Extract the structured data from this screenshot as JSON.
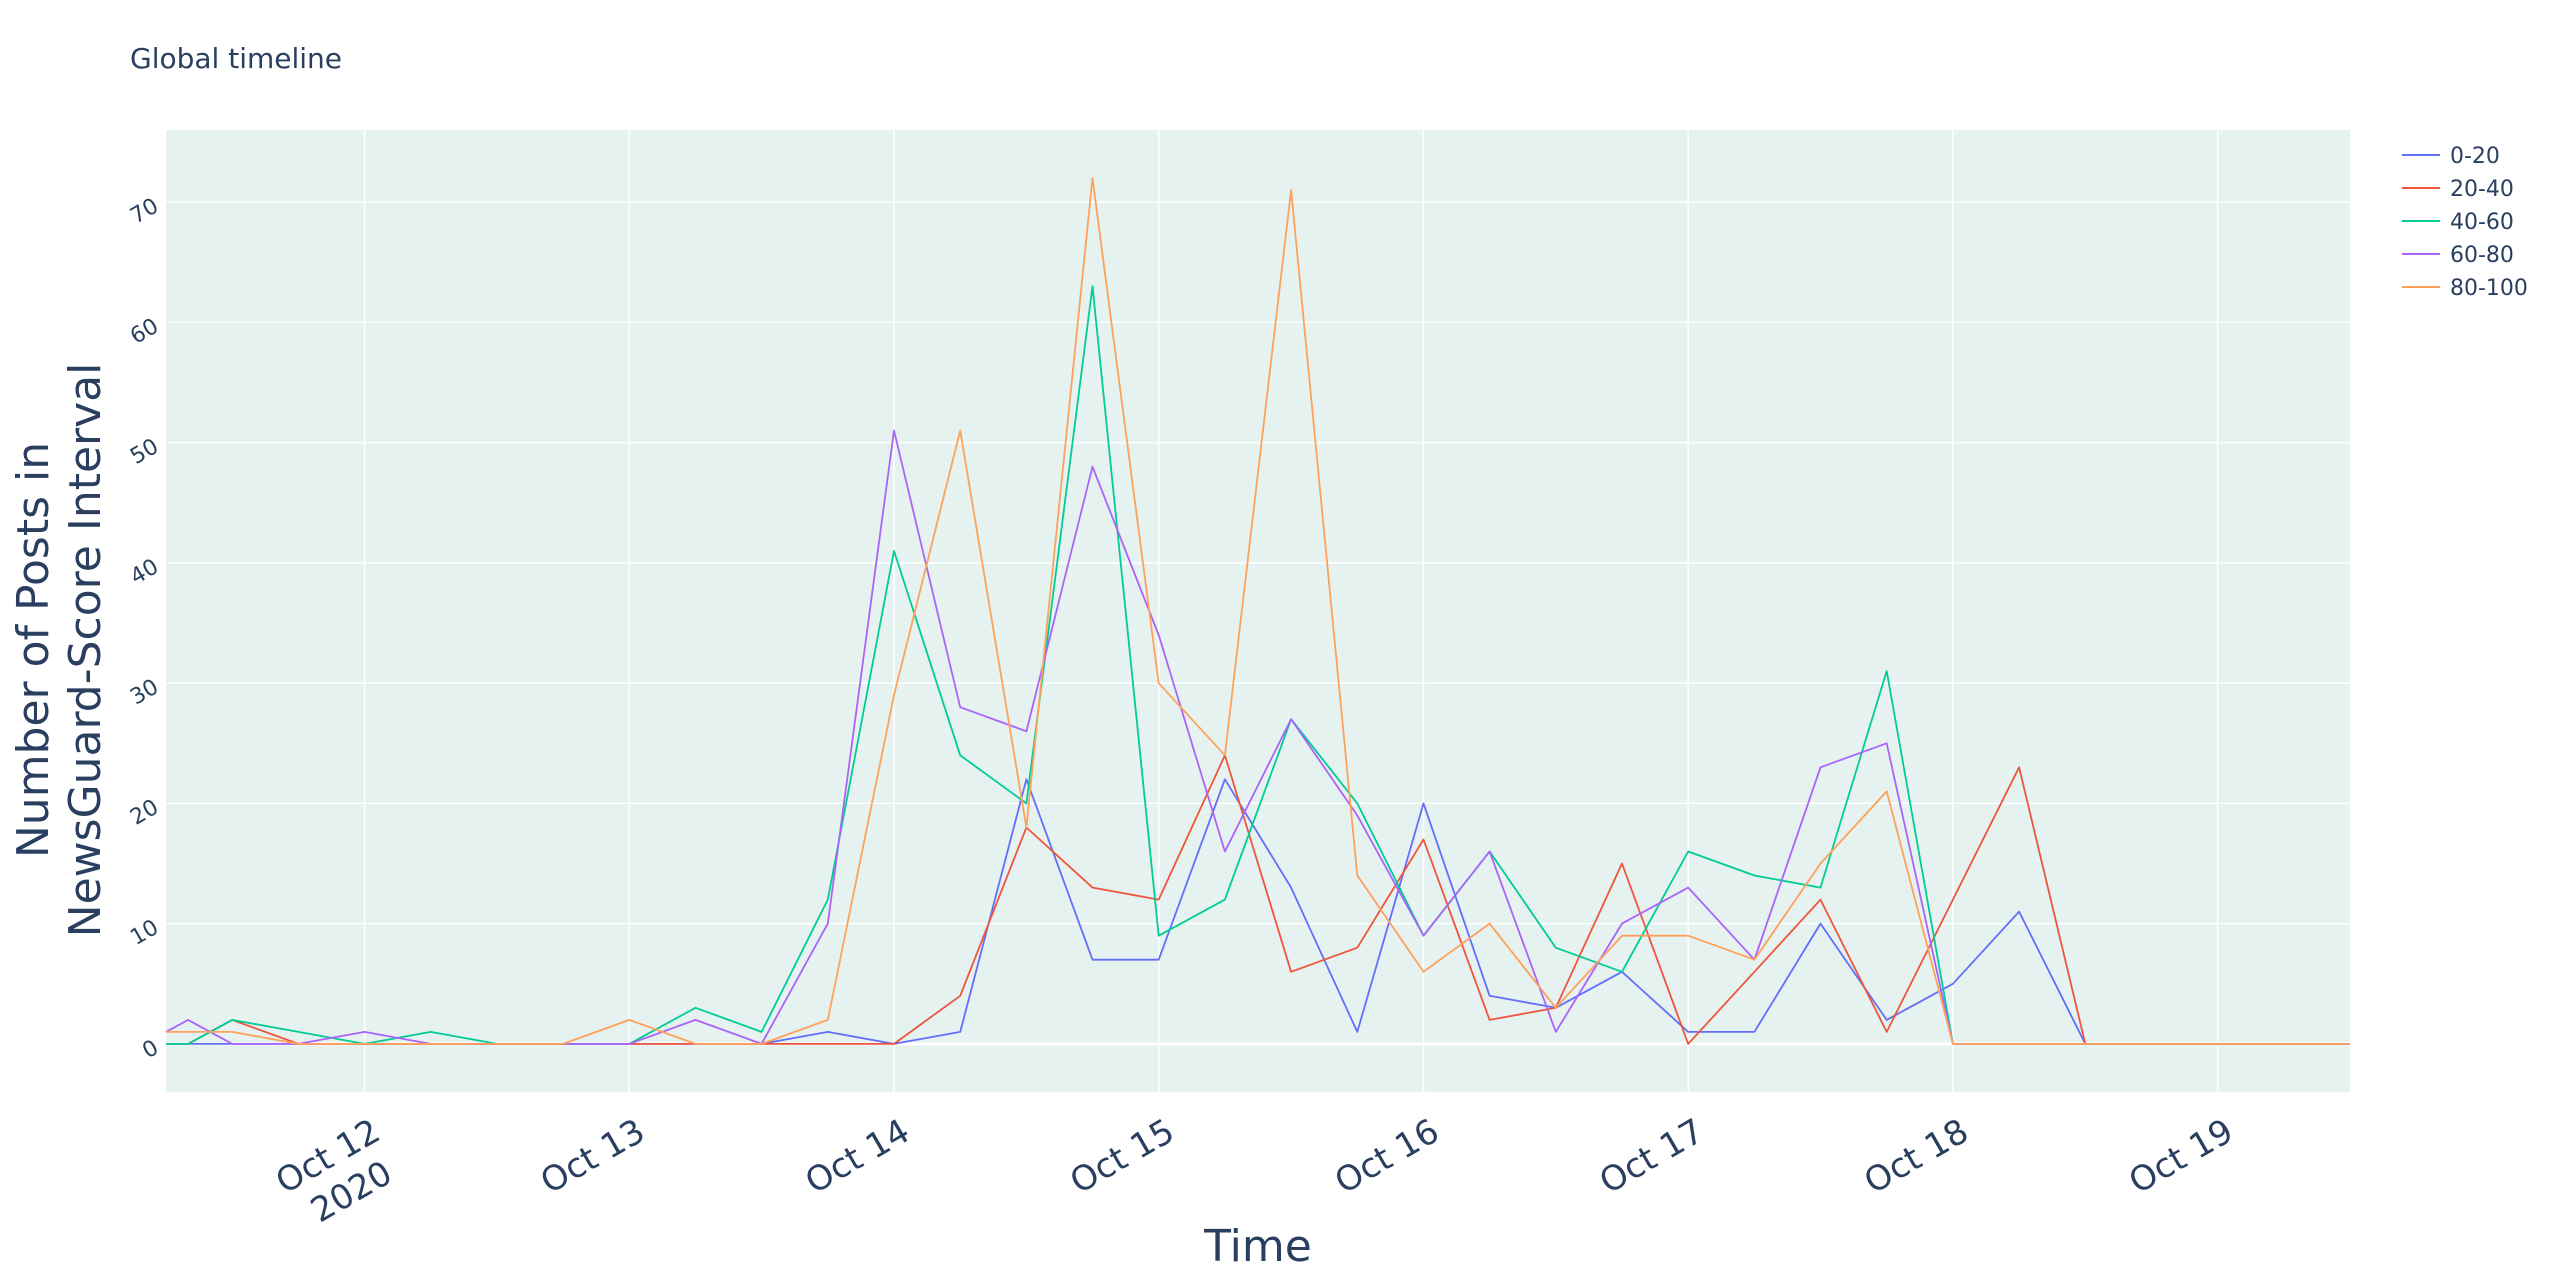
{
  "chart_data": {
    "type": "line",
    "title": "Global timeline",
    "xlabel": "Time",
    "ylabel_lines": [
      "Number of Posts in",
      "NewsGuard-Score Interval"
    ],
    "x": [
      "2020-10-11 06:00",
      "2020-10-11 08:00",
      "2020-10-11 12:00",
      "2020-10-11 18:00",
      "2020-10-12 00:00",
      "2020-10-12 06:00",
      "2020-10-12 12:00",
      "2020-10-12 18:00",
      "2020-10-13 00:00",
      "2020-10-13 06:00",
      "2020-10-13 12:00",
      "2020-10-13 18:00",
      "2020-10-14 00:00",
      "2020-10-14 06:00",
      "2020-10-14 12:00",
      "2020-10-14 18:00",
      "2020-10-15 00:00",
      "2020-10-15 06:00",
      "2020-10-15 12:00",
      "2020-10-15 18:00",
      "2020-10-16 00:00",
      "2020-10-16 06:00",
      "2020-10-16 12:00",
      "2020-10-16 18:00",
      "2020-10-17 00:00",
      "2020-10-17 06:00",
      "2020-10-17 12:00",
      "2020-10-17 18:00",
      "2020-10-18 00:00",
      "2020-10-18 06:00",
      "2020-10-18 12:00",
      "2020-10-18 18:00",
      "2020-10-19 00:00",
      "2020-10-19 06:00",
      "2020-10-19 12:00"
    ],
    "series": [
      {
        "name": "0-20",
        "color": "#636efa",
        "values": [
          0,
          0,
          0,
          0,
          0,
          0,
          0,
          0,
          0,
          0,
          0,
          1,
          0,
          1,
          22,
          7,
          7,
          22,
          13,
          1,
          20,
          4,
          3,
          6,
          1,
          1,
          10,
          2,
          5,
          11,
          0,
          0,
          0,
          0,
          0
        ]
      },
      {
        "name": "20-40",
        "color": "#ef553b",
        "values": [
          0,
          0,
          2,
          0,
          0,
          0,
          0,
          0,
          0,
          0,
          0,
          0,
          0,
          4,
          18,
          13,
          12,
          24,
          6,
          8,
          17,
          2,
          3,
          15,
          0,
          6,
          12,
          1,
          12,
          23,
          0,
          0,
          0,
          0,
          0
        ]
      },
      {
        "name": "40-60",
        "color": "#00cc96",
        "values": [
          0,
          0,
          2,
          1,
          0,
          1,
          0,
          0,
          0,
          3,
          1,
          12,
          41,
          24,
          20,
          63,
          9,
          12,
          27,
          20,
          9,
          16,
          8,
          6,
          16,
          14,
          13,
          31,
          0,
          0,
          0,
          0,
          0,
          0,
          0
        ]
      },
      {
        "name": "60-80",
        "color": "#ab63fa",
        "values": [
          1,
          2,
          0,
          0,
          1,
          0,
          0,
          0,
          0,
          2,
          0,
          10,
          51,
          28,
          26,
          48,
          34,
          16,
          27,
          19,
          9,
          16,
          1,
          10,
          13,
          7,
          23,
          25,
          0,
          0,
          0,
          0,
          0,
          0,
          0
        ]
      },
      {
        "name": "80-100",
        "color": "#ffa15a",
        "values": [
          1,
          1,
          1,
          0,
          0,
          0,
          0,
          0,
          2,
          0,
          0,
          2,
          29,
          51,
          18,
          72,
          30,
          24,
          71,
          14,
          6,
          10,
          3,
          9,
          9,
          7,
          15,
          21,
          0,
          0,
          0,
          0,
          0,
          0,
          0
        ]
      }
    ],
    "xticks": [
      {
        "date": "2020-10-12",
        "label": "Oct 12",
        "sublabel": "2020"
      },
      {
        "date": "2020-10-13",
        "label": "Oct 13",
        "sublabel": ""
      },
      {
        "date": "2020-10-14",
        "label": "Oct 14",
        "sublabel": ""
      },
      {
        "date": "2020-10-15",
        "label": "Oct 15",
        "sublabel": ""
      },
      {
        "date": "2020-10-16",
        "label": "Oct 16",
        "sublabel": ""
      },
      {
        "date": "2020-10-17",
        "label": "Oct 17",
        "sublabel": ""
      },
      {
        "date": "2020-10-18",
        "label": "Oct 18",
        "sublabel": ""
      },
      {
        "date": "2020-10-19",
        "label": "Oct 19",
        "sublabel": ""
      }
    ],
    "yticks": [
      0,
      10,
      20,
      30,
      40,
      50,
      60,
      70
    ],
    "xlim": [
      "2020-10-11 06:00",
      "2020-10-19 12:00"
    ],
    "ylim": [
      -4,
      76
    ],
    "grid": true,
    "legend_position": "top-right",
    "plot_bg": "#e5f2f0",
    "grid_color": "#ffffff",
    "text_color": "#2a3f5f"
  }
}
